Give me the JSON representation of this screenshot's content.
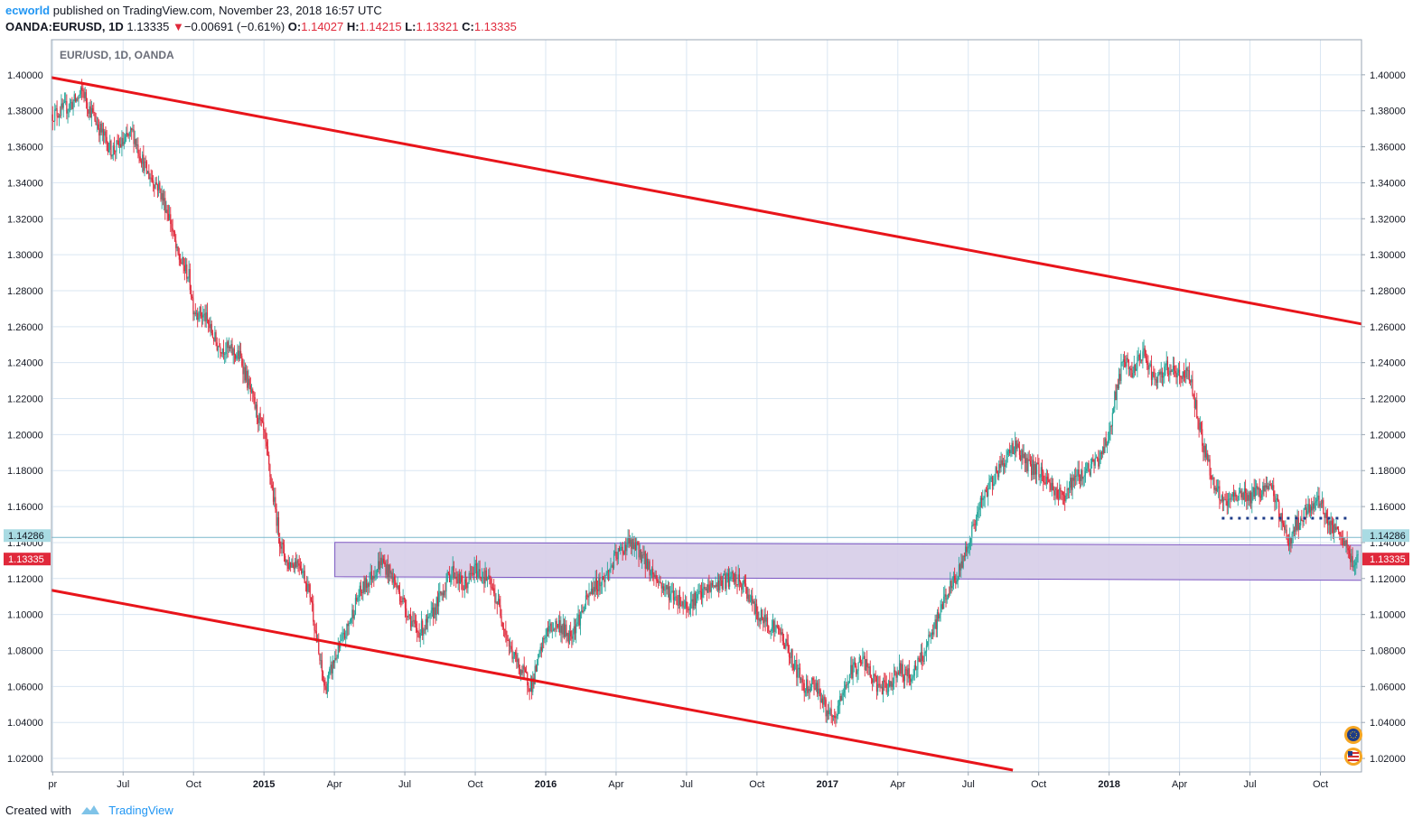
{
  "header": {
    "author": "ecworld",
    "published_text": "published on TradingView.com, November 23, 2018 16:57 UTC",
    "symbol": "OANDA:EURUSD, 1D",
    "last_price": "1.13335",
    "change_arrow": "▼",
    "change": "−0.00691 (−0.61%)",
    "open_label": "O:",
    "open": "1.14027",
    "high_label": "H:",
    "high": "1.14215",
    "low_label": "L:",
    "low": "1.13321",
    "close_label": "C:",
    "close": "1.13335"
  },
  "footer": {
    "created_with": "Created with",
    "brand": "TradingView"
  },
  "colors": {
    "trendline": "#e8151b",
    "zone_fill": "#d6cde8",
    "zone_border": "#7e57c2",
    "candle_up": "#26a69a",
    "candle_down": "#e0293b",
    "dotted_line": "#1f3c88",
    "grid": "#d9e6f2",
    "last_price_bg": "#e0293b",
    "marker_bg": "#a9dbe3"
  },
  "icons": [
    "tradingview-logo-icon",
    "flag-eu-icon",
    "flag-us-icon",
    "down-triangle-icon"
  ],
  "chart_data": {
    "type": "candlestick",
    "legend_title": "EUR/USD, 1D, OANDA",
    "y_ticks": [
      "1.40000",
      "1.38000",
      "1.36000",
      "1.34000",
      "1.32000",
      "1.30000",
      "1.28000",
      "1.26000",
      "1.24000",
      "1.22000",
      "1.20000",
      "1.18000",
      "1.16000",
      "1.14000",
      "1.12000",
      "1.10000",
      "1.08000",
      "1.06000",
      "1.04000",
      "1.02000"
    ],
    "ylim": [
      1.0125,
      1.4195
    ],
    "x_ticks": [
      {
        "label": "pr",
        "t": 0
      },
      {
        "label": "Jul",
        "t": 3
      },
      {
        "label": "Oct",
        "t": 6
      },
      {
        "label": "2015",
        "t": 9,
        "bold": true
      },
      {
        "label": "Apr",
        "t": 12
      },
      {
        "label": "Jul",
        "t": 15
      },
      {
        "label": "Oct",
        "t": 18
      },
      {
        "label": "2016",
        "t": 21,
        "bold": true
      },
      {
        "label": "Apr",
        "t": 24
      },
      {
        "label": "Jul",
        "t": 27
      },
      {
        "label": "Oct",
        "t": 30
      },
      {
        "label": "2017",
        "t": 33,
        "bold": true
      },
      {
        "label": "Apr",
        "t": 36
      },
      {
        "label": "Jul",
        "t": 39
      },
      {
        "label": "Oct",
        "t": 42
      },
      {
        "label": "2018",
        "t": 45,
        "bold": true
      },
      {
        "label": "Apr",
        "t": 48
      },
      {
        "label": "Jul",
        "t": 51
      },
      {
        "label": "Oct",
        "t": 54
      }
    ],
    "x_axis_unit": "months from start of Apr 2014",
    "xlim": [
      -0.05,
      55.75
    ],
    "price_path": [
      [
        0,
        1.378
      ],
      [
        0.5,
        1.381
      ],
      [
        1,
        1.386
      ],
      [
        1.3,
        1.391
      ],
      [
        1.5,
        1.383
      ],
      [
        2,
        1.37
      ],
      [
        2.5,
        1.358
      ],
      [
        3,
        1.362
      ],
      [
        3.4,
        1.368
      ],
      [
        4,
        1.346
      ],
      [
        4.5,
        1.338
      ],
      [
        5,
        1.32
      ],
      [
        5.3,
        1.3
      ],
      [
        5.8,
        1.288
      ],
      [
        6,
        1.27
      ],
      [
        6.5,
        1.265
      ],
      [
        7,
        1.25
      ],
      [
        7.5,
        1.247
      ],
      [
        8,
        1.243
      ],
      [
        8.5,
        1.22
      ],
      [
        9,
        1.2
      ],
      [
        9.4,
        1.165
      ],
      [
        9.7,
        1.14
      ],
      [
        10,
        1.128
      ],
      [
        10.5,
        1.13
      ],
      [
        11,
        1.11
      ],
      [
        11.3,
        1.08
      ],
      [
        11.6,
        1.058
      ],
      [
        12,
        1.075
      ],
      [
        12.5,
        1.09
      ],
      [
        13,
        1.11
      ],
      [
        13.5,
        1.12
      ],
      [
        14,
        1.13
      ],
      [
        14.5,
        1.12
      ],
      [
        15,
        1.105
      ],
      [
        15.5,
        1.09
      ],
      [
        16,
        1.095
      ],
      [
        16.5,
        1.11
      ],
      [
        17,
        1.125
      ],
      [
        17.5,
        1.115
      ],
      [
        18,
        1.125
      ],
      [
        18.5,
        1.12
      ],
      [
        19,
        1.105
      ],
      [
        19.5,
        1.08
      ],
      [
        20,
        1.068
      ],
      [
        20.4,
        1.06
      ],
      [
        20.8,
        1.08
      ],
      [
        21,
        1.09
      ],
      [
        21.5,
        1.095
      ],
      [
        22,
        1.088
      ],
      [
        22.5,
        1.1
      ],
      [
        23,
        1.115
      ],
      [
        23.5,
        1.12
      ],
      [
        24,
        1.132
      ],
      [
        24.5,
        1.14
      ],
      [
        25,
        1.135
      ],
      [
        25.5,
        1.124
      ],
      [
        26,
        1.115
      ],
      [
        26.5,
        1.11
      ],
      [
        27,
        1.105
      ],
      [
        27.5,
        1.11
      ],
      [
        28,
        1.115
      ],
      [
        28.5,
        1.118
      ],
      [
        29,
        1.12
      ],
      [
        29.5,
        1.115
      ],
      [
        30,
        1.1
      ],
      [
        30.5,
        1.095
      ],
      [
        31,
        1.09
      ],
      [
        31.5,
        1.075
      ],
      [
        32,
        1.06
      ],
      [
        32.5,
        1.062
      ],
      [
        33,
        1.045
      ],
      [
        33.3,
        1.04
      ],
      [
        33.6,
        1.055
      ],
      [
        34,
        1.068
      ],
      [
        34.5,
        1.075
      ],
      [
        35,
        1.062
      ],
      [
        35.5,
        1.058
      ],
      [
        36,
        1.07
      ],
      [
        36.5,
        1.065
      ],
      [
        37,
        1.075
      ],
      [
        37.5,
        1.09
      ],
      [
        38,
        1.11
      ],
      [
        38.5,
        1.12
      ],
      [
        39,
        1.14
      ],
      [
        39.5,
        1.16
      ],
      [
        40,
        1.175
      ],
      [
        40.5,
        1.185
      ],
      [
        41,
        1.195
      ],
      [
        41.5,
        1.183
      ],
      [
        42,
        1.18
      ],
      [
        42.5,
        1.172
      ],
      [
        43,
        1.165
      ],
      [
        43.5,
        1.175
      ],
      [
        44,
        1.18
      ],
      [
        44.5,
        1.185
      ],
      [
        45,
        1.2
      ],
      [
        45.3,
        1.225
      ],
      [
        45.6,
        1.24
      ],
      [
        46,
        1.235
      ],
      [
        46.5,
        1.245
      ],
      [
        47,
        1.228
      ],
      [
        47.5,
        1.238
      ],
      [
        48,
        1.232
      ],
      [
        48.4,
        1.235
      ],
      [
        48.7,
        1.215
      ],
      [
        49,
        1.195
      ],
      [
        49.5,
        1.17
      ],
      [
        50,
        1.16
      ],
      [
        50.5,
        1.168
      ],
      [
        51,
        1.165
      ],
      [
        51.5,
        1.17
      ],
      [
        52,
        1.168
      ],
      [
        52.3,
        1.155
      ],
      [
        52.6,
        1.14
      ],
      [
        53,
        1.15
      ],
      [
        53.5,
        1.158
      ],
      [
        54,
        1.165
      ],
      [
        54.3,
        1.15
      ],
      [
        54.7,
        1.145
      ],
      [
        55,
        1.14
      ],
      [
        55.3,
        1.13
      ],
      [
        55.5,
        1.128
      ],
      [
        55.6,
        1.13335
      ]
    ],
    "trend_lines": [
      {
        "name": "upper",
        "points": [
          [
            -0.05,
            1.3985
          ],
          [
            55.75,
            1.2615
          ]
        ]
      },
      {
        "name": "lower",
        "points": [
          [
            -0.05,
            1.1135
          ],
          [
            40.9,
            1.0135
          ]
        ]
      }
    ],
    "zone": {
      "t_start": 12.02,
      "t_end": 55.75,
      "top_start": 1.1401,
      "top_end": 1.1385,
      "bottom_start": 1.121,
      "bottom_end": 1.119
    },
    "dotted_level": {
      "value": 1.1535,
      "t_start": 49.8,
      "t_end": 55.2
    },
    "price_labels": [
      {
        "value": "1.14286",
        "y": 1.14286,
        "kind": "marker"
      },
      {
        "value": "1.13335",
        "y": 1.13335,
        "kind": "last"
      }
    ]
  }
}
